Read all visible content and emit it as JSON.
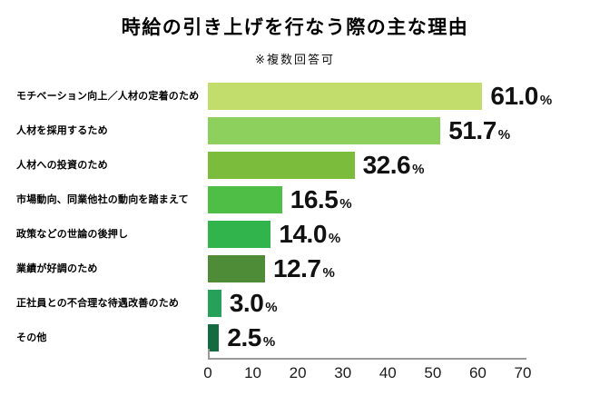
{
  "title": "時給の引き上げを行なう際の主な理由",
  "subtitle": "※複数回答可",
  "chart_data": {
    "type": "bar",
    "orientation": "horizontal",
    "title": "時給の引き上げを行なう際の主な理由",
    "subtitle": "※複数回答可",
    "unit": "%",
    "categories": [
      "モチベーション向上／人材の定着のため",
      "人材を採用するため",
      "人材への投資のため",
      "市場動向、同業他社の動向を踏まえて",
      "政策などの世論の後押し",
      "業績が好調のため",
      "正社員との不合理な待遇改善のため",
      "その他"
    ],
    "values": [
      61.0,
      51.7,
      32.6,
      16.5,
      14.0,
      12.7,
      3.0,
      2.5
    ],
    "value_labels": [
      "61.0",
      "51.7",
      "32.6",
      "16.5",
      "14.0",
      "12.7",
      "3.0",
      "2.5"
    ],
    "bar_colors": [
      "#c3dd6c",
      "#8ed05e",
      "#7bbc3c",
      "#4fbe47",
      "#30b44b",
      "#4e8c37",
      "#27a059",
      "#156b41"
    ],
    "xlim": [
      0,
      70
    ],
    "x_ticks": [
      0,
      10,
      20,
      30,
      40,
      50,
      60,
      70
    ],
    "axis_color": "#9a9a9a",
    "grid": false,
    "legend": "none"
  }
}
